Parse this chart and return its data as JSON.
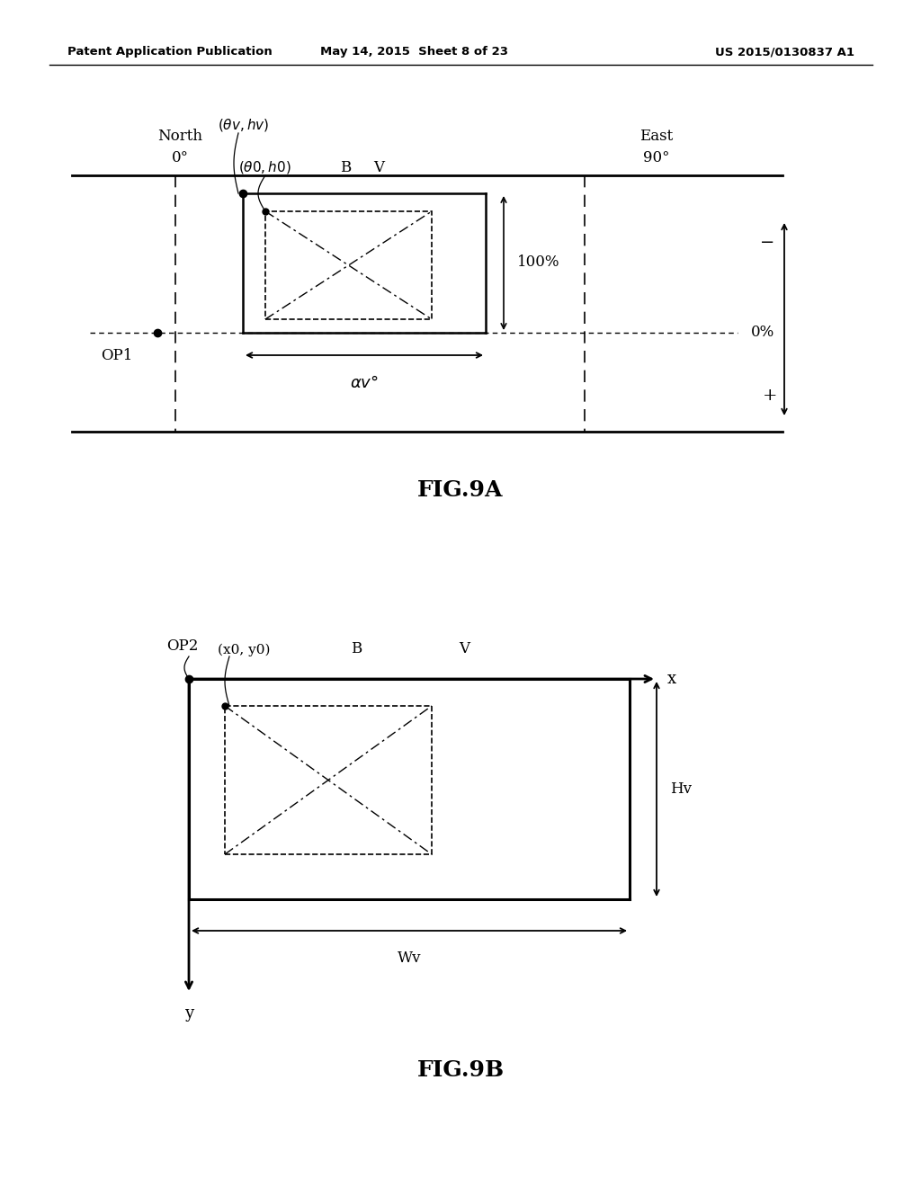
{
  "bg_color": "#ffffff",
  "header_left": "Patent Application Publication",
  "header_center": "May 14, 2015  Sheet 8 of 23",
  "header_right": "US 2015/0130837 A1",
  "fig9a_label": "FIG.9A",
  "fig9b_label": "FIG.9B"
}
